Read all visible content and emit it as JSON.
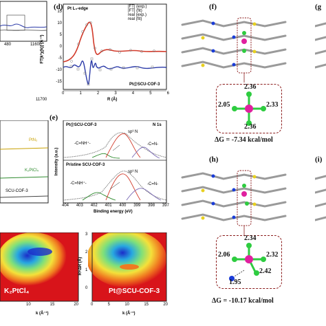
{
  "panel_d": {
    "label": "(d)",
    "edge": "Pt L₃-edge",
    "legend": [
      "|FT| (exp.)",
      "|FT| (fit)",
      "real (exp.)",
      "real (fit)"
    ],
    "ylabel": "FT|k²χ(k)| (Å⁻³)",
    "xlabel": "R (Å)",
    "yticks": [
      "15",
      "10",
      "5",
      "0",
      "-5",
      "-10",
      "-15"
    ],
    "xticks": [
      "0",
      "1",
      "2",
      "3",
      "4",
      "5",
      "6"
    ],
    "sample": "Pt@SCU-COF-3"
  },
  "panel_a_partial": {
    "tick_1": "11600",
    "tick_2": "11700",
    "tick_3": "480"
  },
  "panel_b_partial": {
    "ptn2": "PtN₂",
    "k2ptcl4": "K₂PtCl₄",
    "cof": "SCU-COF-3"
  },
  "panel_e": {
    "label": "(e)",
    "top_title": "Pt@SCU-COF-3",
    "bottom_title": "Pristine SCU-COF-3",
    "element": "N 1s",
    "peak_sp3": "sp³ N",
    "peak_nh": "-C=NH⁺-",
    "peak_cn": "-C=N-",
    "ylabel": "Intensity (a.u.)",
    "xlabel": "Binding energy (eV)",
    "xticks": [
      "404",
      "403",
      "402",
      "401",
      "400",
      "399",
      "398",
      "397"
    ]
  },
  "wavelet": {
    "left_label": "K₂PtCl₄",
    "right_label": "Pt@SCU-COF-3",
    "xlabel": "k (Å⁻¹)",
    "ylabel": "R+ΔR (Å)",
    "left_xticks": [
      "10",
      "15",
      "20"
    ],
    "right_xticks": [
      "0",
      "5",
      "10",
      "15",
      "20"
    ],
    "yticks": [
      "3",
      "2",
      "1",
      "0"
    ]
  },
  "panel_f": {
    "label": "(f)",
    "bonds": {
      "top": "2.36",
      "left": "2.05",
      "right": "2.33",
      "bottom": "2.36"
    },
    "dg": "ΔG = -7.34 kcal/mol"
  },
  "panel_h": {
    "label": "(h)",
    "bonds": {
      "top": "2.34",
      "left": "2.06",
      "right": "2.32",
      "bottom_right": "2.42",
      "bottom": "1.95"
    },
    "dg": "ΔG = -10.17 kcal/mol"
  },
  "panel_g": {
    "label": "(g"
  },
  "panel_i": {
    "label": "(i)"
  },
  "colors": {
    "exp": "#7a7a7a",
    "fit_abs": "#d23a2a",
    "fit_real": "#2b3aa8",
    "frame": "#8b1a1a",
    "pt": "#e0209f",
    "cl": "#2ecc40",
    "n": "#1a3cd8"
  }
}
